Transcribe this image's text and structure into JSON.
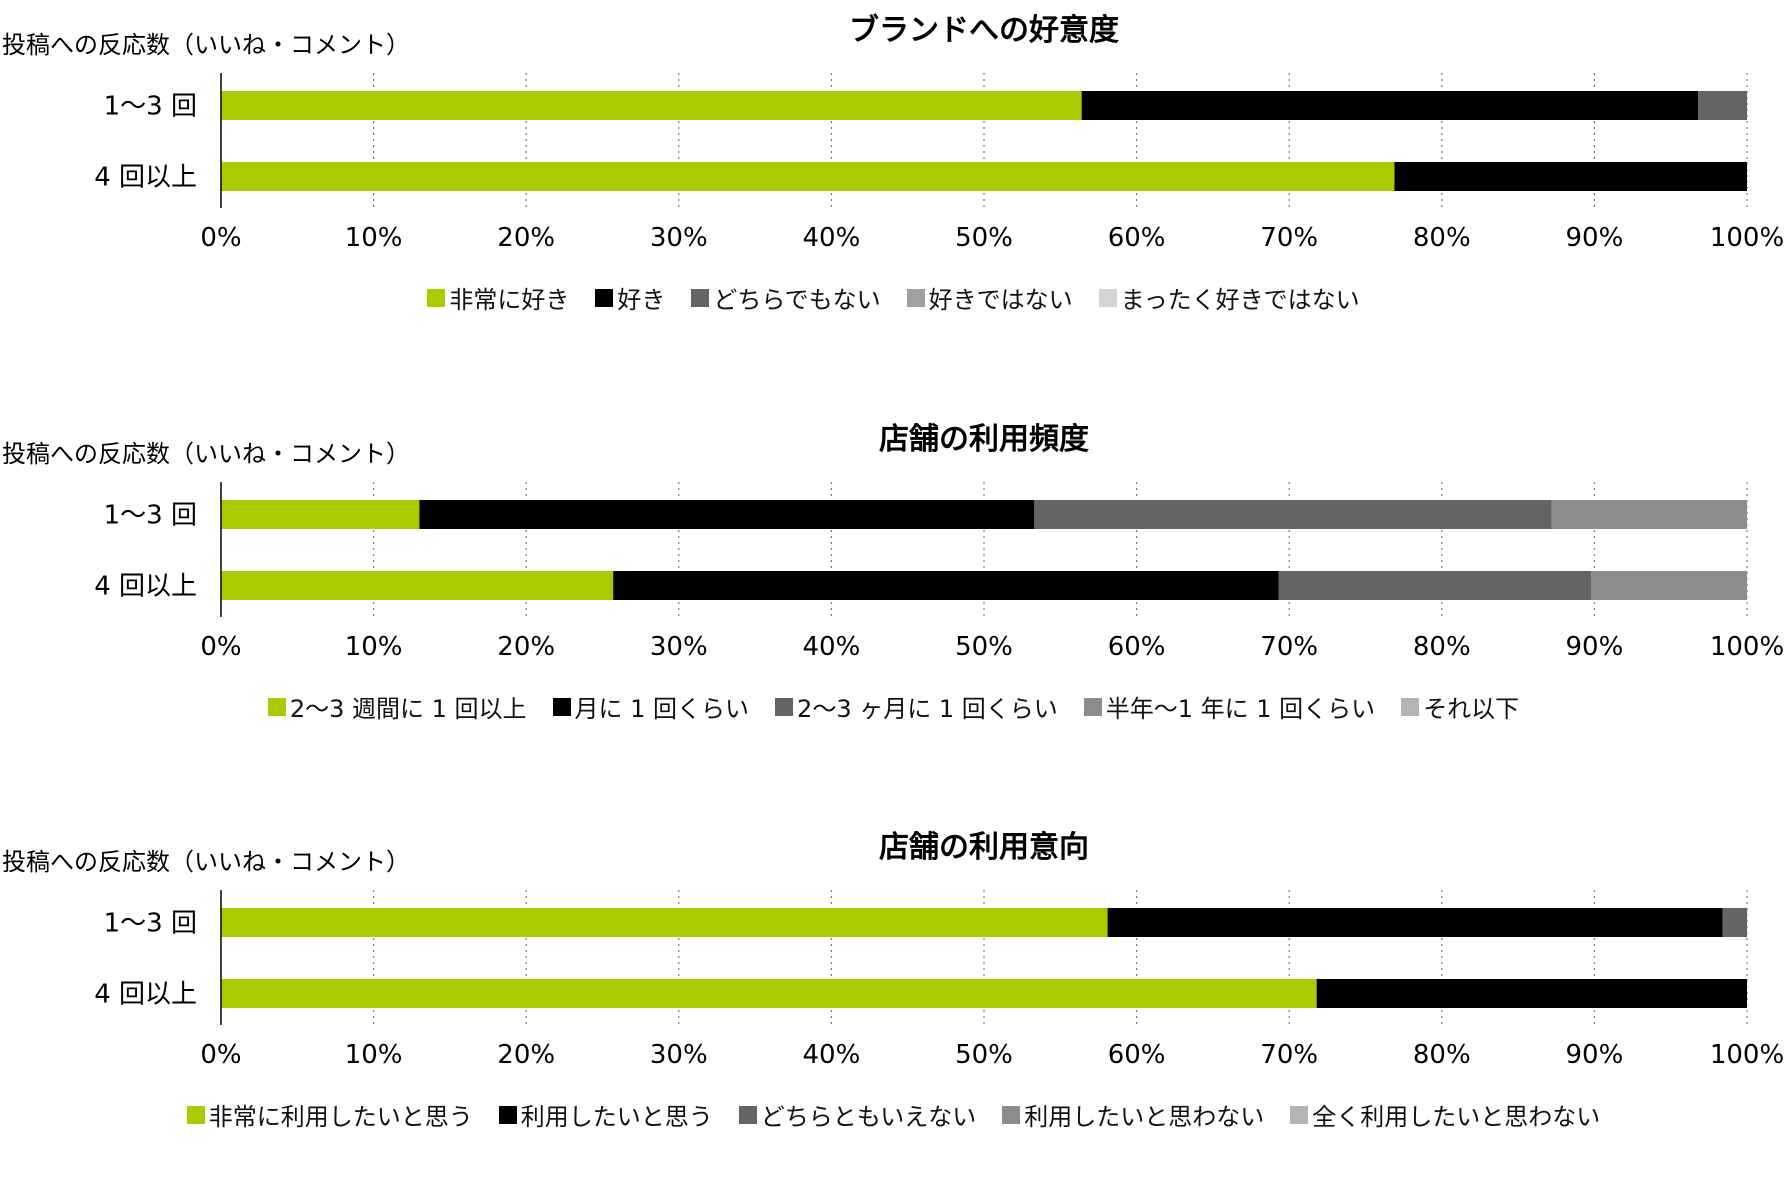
{
  "chart_data": [
    {
      "type": "bar",
      "orientation": "horizontal",
      "stacked": true,
      "title": "ブランドへの好意度",
      "ylabel": "投稿への反応数（いいね・コメント）",
      "categories": [
        "1～3 回",
        "4 回以上"
      ],
      "xlim": [
        0,
        100
      ],
      "x_ticks": [
        "0%",
        "10%",
        "20%",
        "30%",
        "40%",
        "50%",
        "60%",
        "70%",
        "80%",
        "90%",
        "100%"
      ],
      "grid": "vertical-dotted",
      "legend": "bottom",
      "series": [
        {
          "name": "非常に好き",
          "values": [
            56.4,
            76.9
          ],
          "color": "#a8cc00"
        },
        {
          "name": "好き",
          "values": [
            40.4,
            23.1
          ],
          "color": "#000000"
        },
        {
          "name": "どちらでもない",
          "values": [
            3.2,
            0
          ],
          "color": "#646464"
        },
        {
          "name": "好きではない",
          "values": [
            0,
            0
          ],
          "color": "#a0a0a0"
        },
        {
          "name": "まったく好きではない",
          "values": [
            0,
            0
          ],
          "color": "#d4d4d4"
        }
      ]
    },
    {
      "type": "bar",
      "orientation": "horizontal",
      "stacked": true,
      "title": "店舗の利用頻度",
      "ylabel": "投稿への反応数（いいね・コメント）",
      "categories": [
        "1～3 回",
        "4 回以上"
      ],
      "xlim": [
        0,
        100
      ],
      "x_ticks": [
        "0%",
        "10%",
        "20%",
        "30%",
        "40%",
        "50%",
        "60%",
        "70%",
        "80%",
        "90%",
        "100%"
      ],
      "grid": "vertical-dotted",
      "legend": "bottom",
      "series": [
        {
          "name": "2～3 週間に 1 回以上",
          "values": [
            13.0,
            25.7
          ],
          "color": "#a8cc00"
        },
        {
          "name": "月に 1 回くらい",
          "values": [
            40.3,
            43.6
          ],
          "color": "#000000"
        },
        {
          "name": "2～3 ヶ月に 1 回くらい",
          "values": [
            33.9,
            20.5
          ],
          "color": "#646464"
        },
        {
          "name": "半年～1 年に 1 回くらい",
          "values": [
            12.8,
            10.2
          ],
          "color": "#8c8c8c"
        },
        {
          "name": "それ以下",
          "values": [
            0,
            0
          ],
          "color": "#b4b4b4"
        }
      ]
    },
    {
      "type": "bar",
      "orientation": "horizontal",
      "stacked": true,
      "title": "店舗の利用意向",
      "ylabel": "投稿への反応数（いいね・コメント）",
      "categories": [
        "1～3 回",
        "4 回以上"
      ],
      "xlim": [
        0,
        100
      ],
      "x_ticks": [
        "0%",
        "10%",
        "20%",
        "30%",
        "40%",
        "50%",
        "60%",
        "70%",
        "80%",
        "90%",
        "100%"
      ],
      "grid": "vertical-dotted",
      "legend": "bottom",
      "series": [
        {
          "name": "非常に利用したいと思う",
          "values": [
            58.1,
            71.8
          ],
          "color": "#a8cc00"
        },
        {
          "name": "利用したいと思う",
          "values": [
            40.3,
            28.2
          ],
          "color": "#000000"
        },
        {
          "name": "どちらともいえない",
          "values": [
            1.6,
            0
          ],
          "color": "#646464"
        },
        {
          "name": "利用したいと思わない",
          "values": [
            0,
            0
          ],
          "color": "#8c8c8c"
        },
        {
          "name": "全く利用したいと思わない",
          "values": [
            0,
            0
          ],
          "color": "#b4b4b4"
        }
      ]
    }
  ]
}
